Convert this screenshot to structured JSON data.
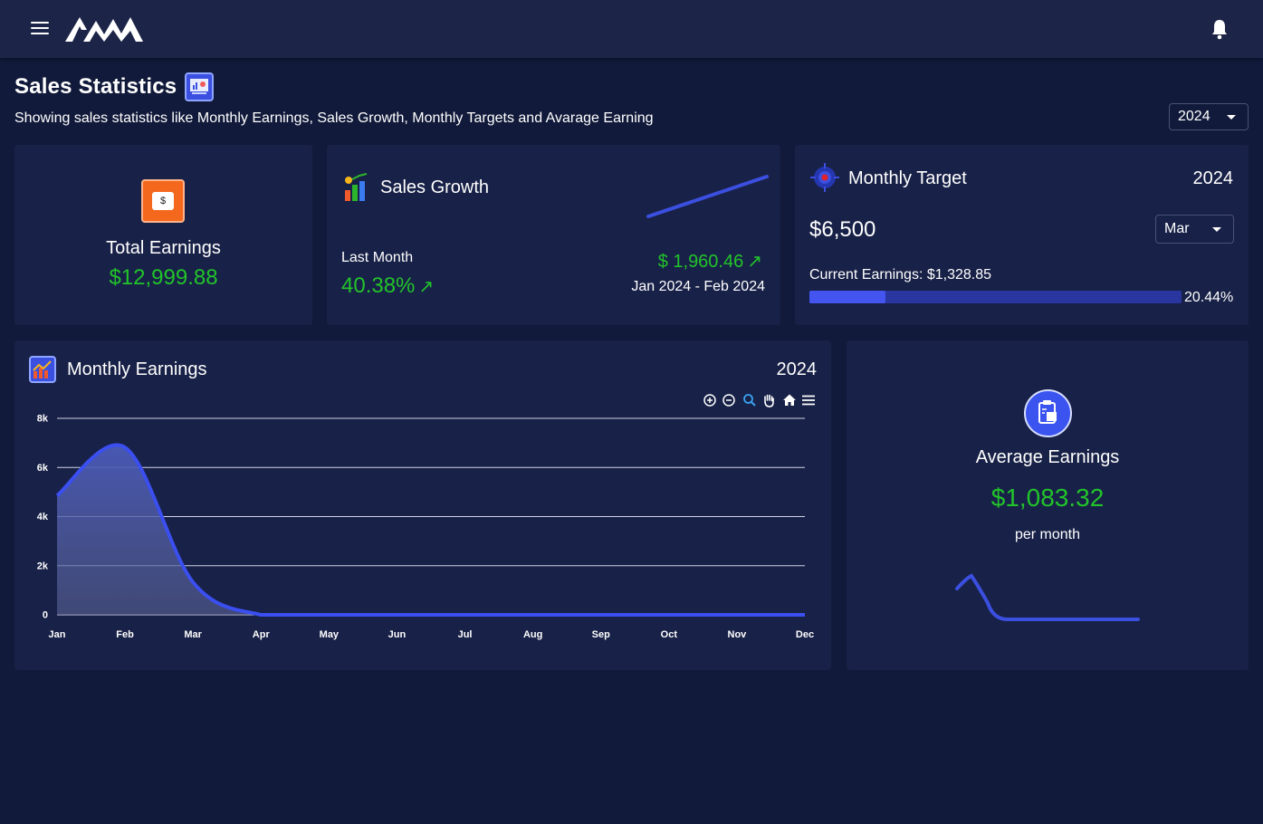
{
  "topbar": {
    "menu_icon": "hamburger-icon",
    "logo_icon": "logo",
    "notification_icon": "bell-icon"
  },
  "page": {
    "title": "Sales Statistics",
    "subtitle": "Showing sales statistics like Monthly Earnings, Sales Growth, Monthly Targets and Avarage Earning",
    "year_select": "2024"
  },
  "total_earnings": {
    "label": "Total Earnings",
    "value": "$12,999.88",
    "icon": "dollar-bill-icon"
  },
  "sales_growth": {
    "title": "Sales Growth",
    "last_month_label": "Last Month",
    "percent": "40.38%",
    "amount": "$ 1,960.46",
    "range": "Jan 2024 - Feb 2024",
    "arrow_icon": "arrow-up-right-icon"
  },
  "monthly_target": {
    "title": "Monthly Target",
    "year": "2024",
    "amount": "$6,500",
    "month_select": "Mar",
    "current_label": "Current Earnings: $1,328.85",
    "progress_percent_text": "20.44%",
    "progress_fraction": 0.2044
  },
  "monthly_earnings": {
    "title": "Monthly Earnings",
    "year": "2024",
    "toolbar": [
      "zoom-in-icon",
      "zoom-out-icon",
      "zoom-select-icon",
      "pan-hand-icon",
      "reset-home-icon",
      "menu-icon"
    ]
  },
  "average_earnings": {
    "label": "Average Earnings",
    "value": "$1,083.32",
    "unit": "per month",
    "icon": "clipboard-box-icon"
  },
  "colors": {
    "accent": "#3b4fe0",
    "positive": "#22c32b",
    "card": "#182147",
    "background": "#111a3a"
  },
  "chart_data": {
    "type": "area",
    "categories": [
      "Jan",
      "Feb",
      "Mar",
      "Apr",
      "May",
      "Jun",
      "Jul",
      "Aug",
      "Sep",
      "Oct",
      "Nov",
      "Dec"
    ],
    "values": [
      4855,
      6815,
      1329,
      0,
      0,
      0,
      0,
      0,
      0,
      0,
      0,
      0
    ],
    "yticks": [
      "0",
      "2k",
      "4k",
      "6k",
      "8k"
    ],
    "ylim": [
      0,
      8000
    ],
    "grid": true,
    "title": "",
    "xlabel": "",
    "ylabel": ""
  }
}
